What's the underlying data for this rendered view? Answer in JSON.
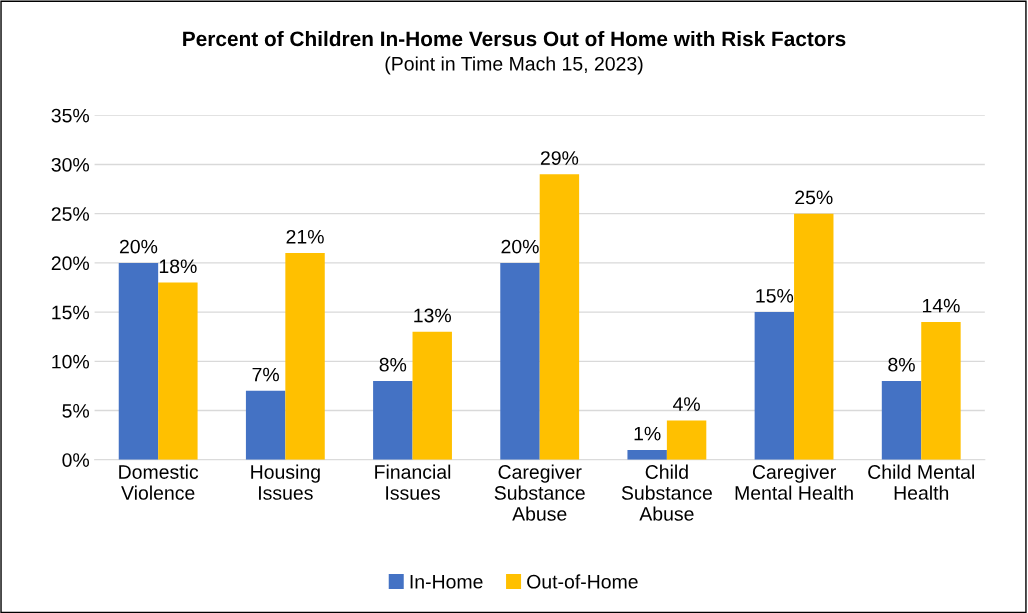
{
  "chart_data": {
    "type": "bar",
    "title": "Percent of Children In-Home Versus Out of Home with Risk Factors",
    "subtitle": "(Point in Time Mach 15, 2023)",
    "categories": [
      "Domestic\nViolence",
      "Housing\nIssues",
      "Financial\nIssues",
      "Caregiver\nSubstance\nAbuse",
      "Child\nSubstance\nAbuse",
      "Caregiver\nMental Health",
      "Child Mental\nHealth"
    ],
    "series": [
      {
        "name": "In-Home",
        "color": "#4472c4",
        "values": [
          20,
          7,
          8,
          20,
          1,
          15,
          8
        ],
        "value_labels": [
          "20%",
          "7%",
          "8%",
          "20%",
          "1%",
          "15%",
          "8%"
        ]
      },
      {
        "name": "Out-of-Home",
        "color": "#ffc000",
        "values": [
          18,
          21,
          13,
          29,
          4,
          25,
          14
        ],
        "value_labels": [
          "18%",
          "21%",
          "13%",
          "29%",
          "4%",
          "25%",
          "14%"
        ]
      }
    ],
    "ylim": [
      0,
      35
    ],
    "yticks": [
      {
        "value": 0,
        "label": "0%"
      },
      {
        "value": 5,
        "label": "5%"
      },
      {
        "value": 10,
        "label": "10%"
      },
      {
        "value": 15,
        "label": "15%"
      },
      {
        "value": 20,
        "label": "20%"
      },
      {
        "value": 25,
        "label": "25%"
      },
      {
        "value": 30,
        "label": "30%"
      },
      {
        "value": 35,
        "label": "35%"
      }
    ],
    "grid": "y",
    "legend": "bottom"
  }
}
